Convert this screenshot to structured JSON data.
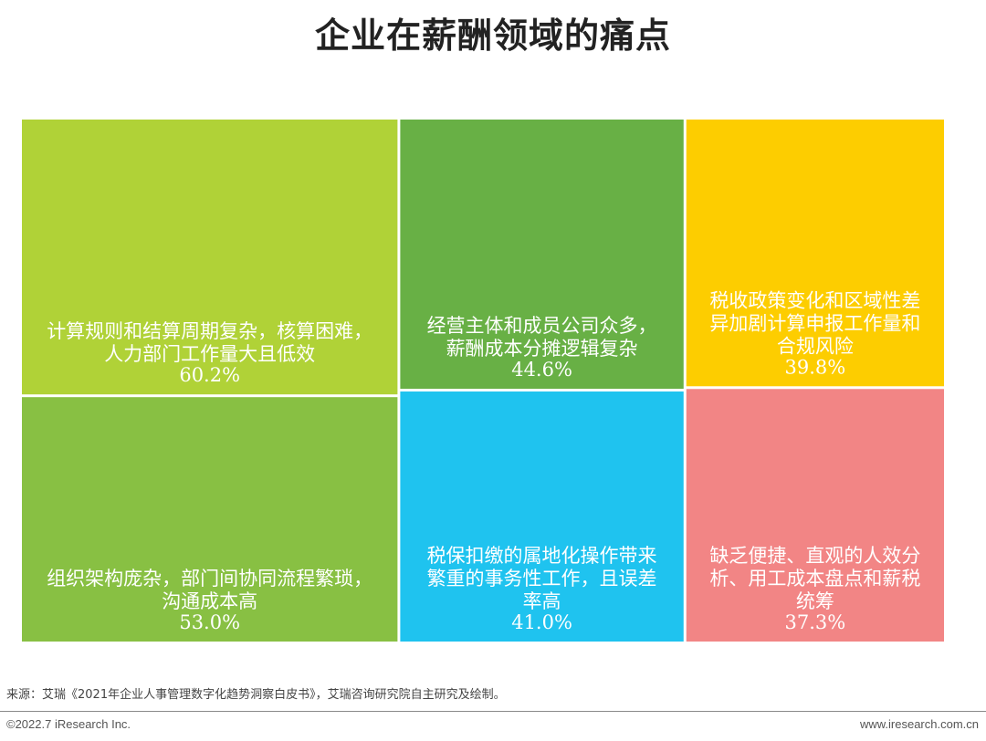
{
  "chart_data": {
    "type": "treemap",
    "title": "企业在薪酬领域的痛点",
    "items": [
      {
        "name": "计算规则和结算周期复杂，核算困难，人力部门工作量大且低效",
        "lines": [
          "计算规则和结算周期复杂，核算困难，",
          "人力部门工作量大且低效"
        ],
        "value": 60.2,
        "value_label": "60.2%",
        "color": "#b0d237"
      },
      {
        "name": "组织架构庞杂，部门间协同流程繁琐，沟通成本高",
        "lines": [
          "组织架构庞杂，部门间协同流程繁琐，",
          "沟通成本高"
        ],
        "value": 53.0,
        "value_label": "53.0%",
        "color": "#88c043"
      },
      {
        "name": "经营主体和成员公司众多，薪酬成本分摊逻辑复杂",
        "lines": [
          "经营主体和成员公司众多，",
          "薪酬成本分摊逻辑复杂"
        ],
        "value": 44.6,
        "value_label": "44.6%",
        "color": "#68b045"
      },
      {
        "name": "税保扣缴的属地化操作带来繁重的事务性工作，且误差率高",
        "lines": [
          "税保扣缴的属地化操作带来",
          "繁重的事务性工作，且误差",
          "率高"
        ],
        "value": 41.0,
        "value_label": "41.0%",
        "color": "#1fc3ef"
      },
      {
        "name": "税收政策变化和区域性差异加剧计算申报工作量和合规风险",
        "lines": [
          "税收政策变化和区域性差",
          "异加剧计算申报工作量和",
          "合规风险"
        ],
        "value": 39.8,
        "value_label": "39.8%",
        "color": "#fdcd00"
      },
      {
        "name": "缺乏便捷、直观的人效分析、用工成本盘点和薪税统筹",
        "lines": [
          "缺乏便捷、直观的人效分",
          "析、用工成本盘点和薪税",
          "统筹"
        ],
        "value": 37.3,
        "value_label": "37.3%",
        "color": "#f28585"
      }
    ]
  },
  "footer": {
    "source": "来源：艾瑞《2021年企业人事管理数字化趋势洞察白皮书》，艾瑞咨询研究院自主研究及绘制。",
    "copyright": "©2022.7 iResearch Inc.",
    "website": "www.iresearch.com.cn"
  }
}
